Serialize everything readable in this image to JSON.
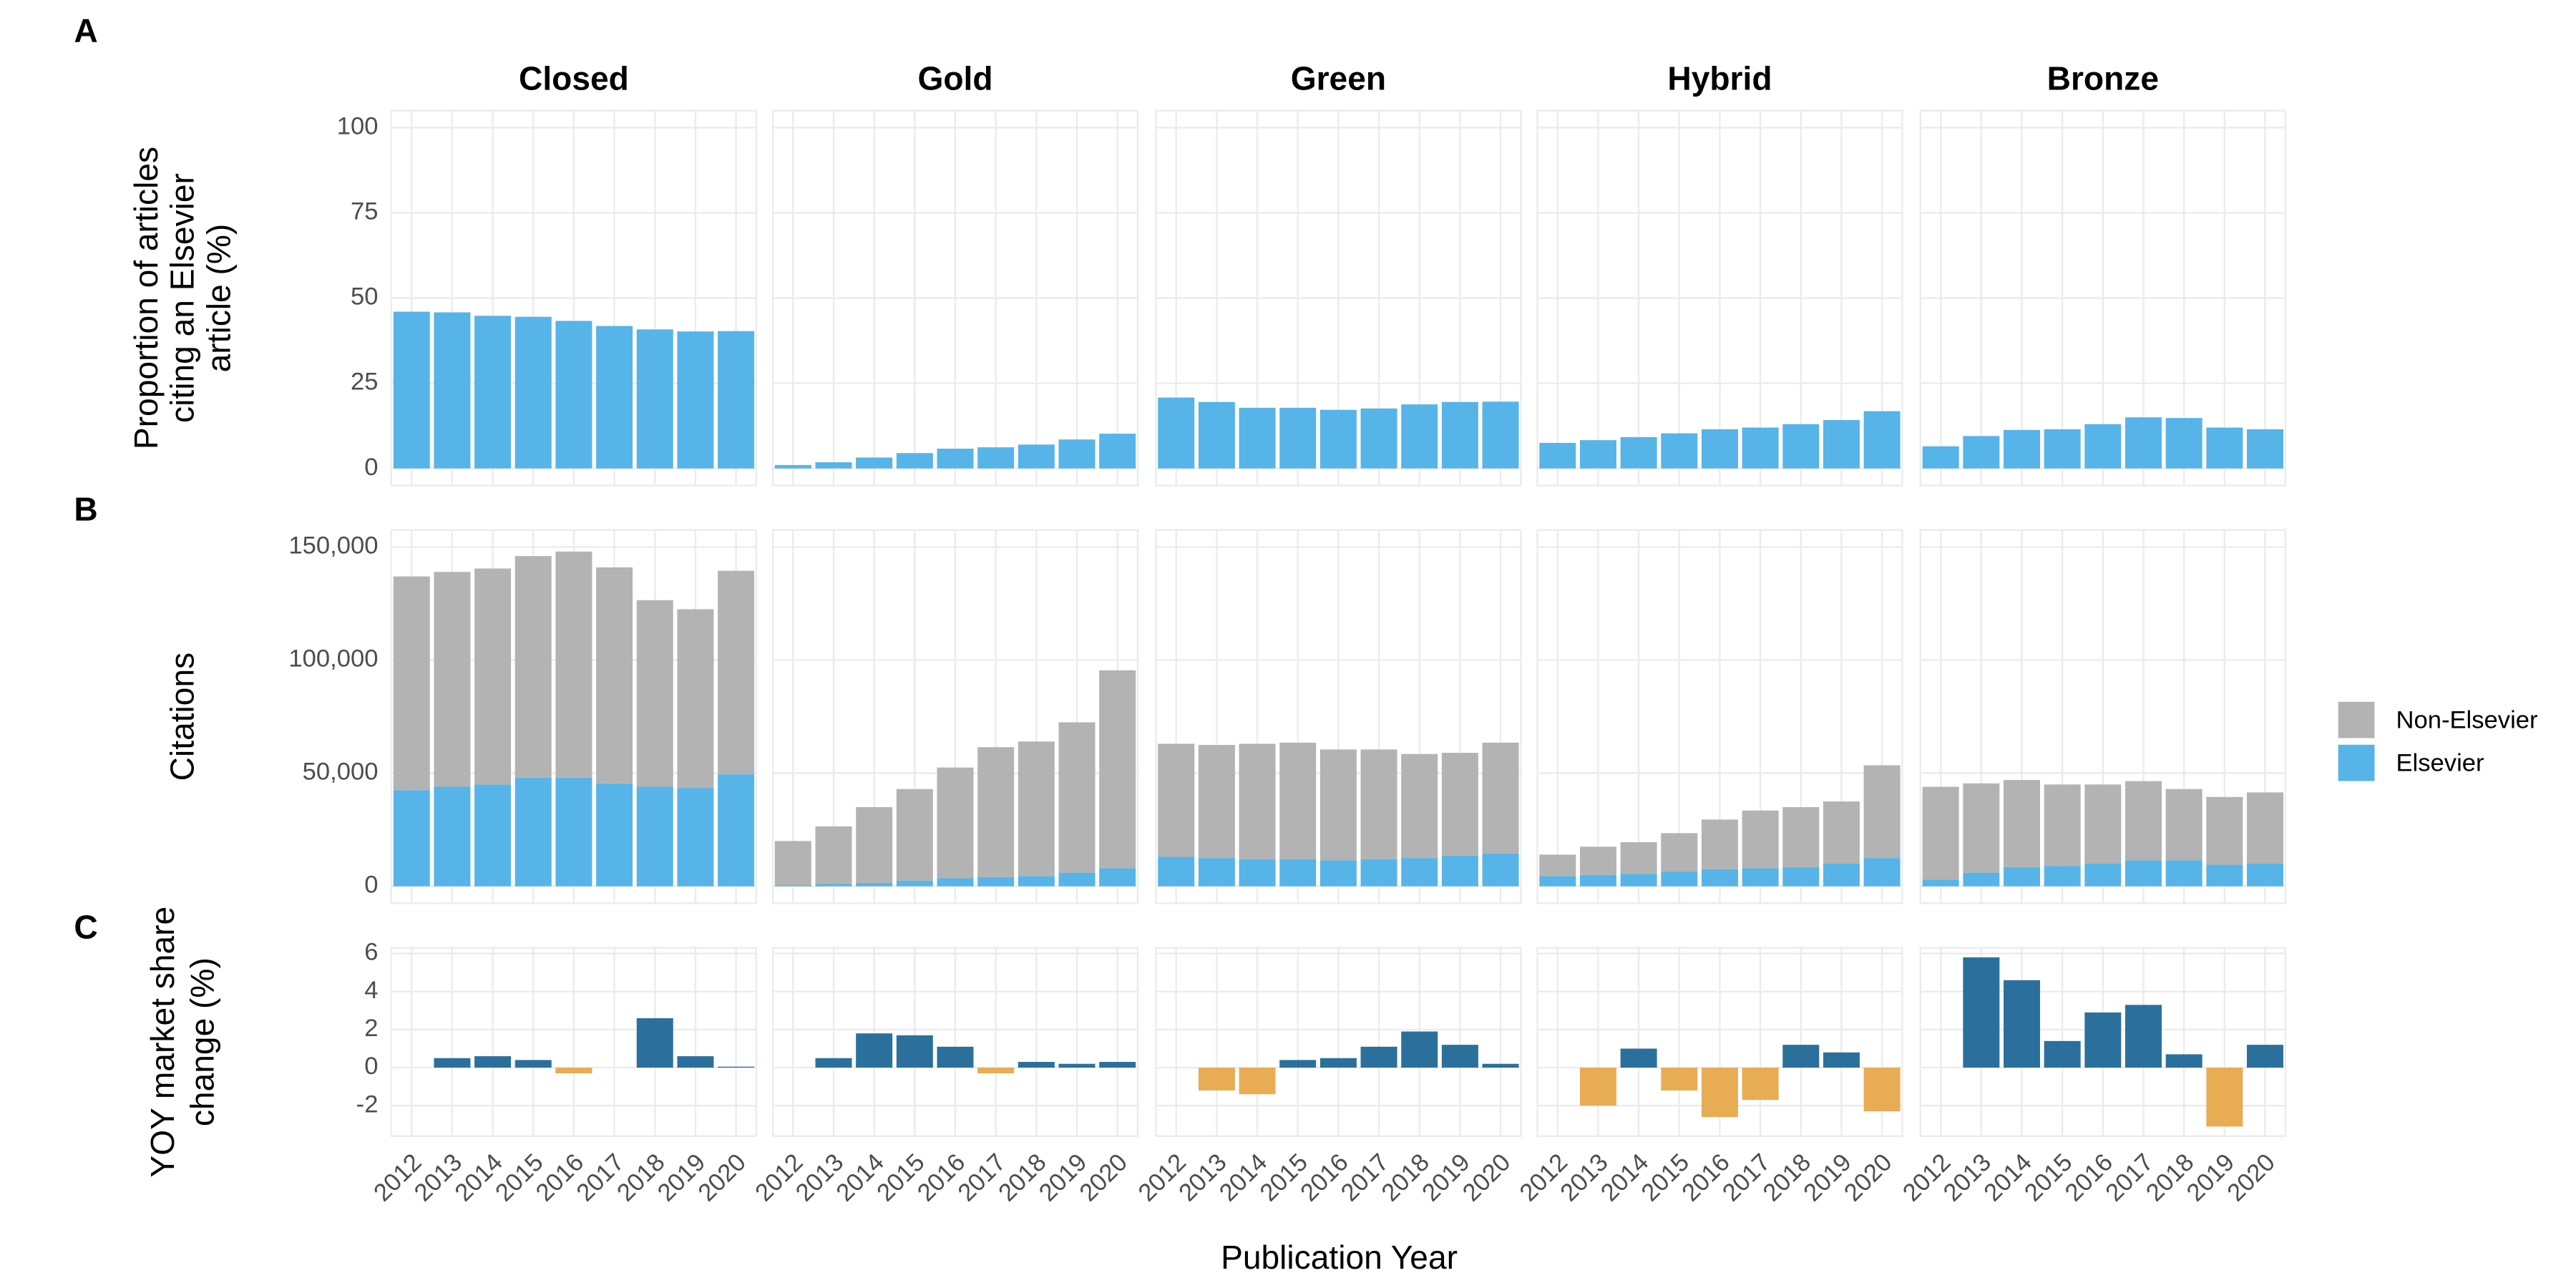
{
  "chart_data": {
    "type": "bar",
    "facets": [
      "Closed",
      "Gold",
      "Green",
      "Hybrid",
      "Bronze"
    ],
    "categories": [
      2012,
      2013,
      2014,
      2015,
      2016,
      2017,
      2018,
      2019,
      2020
    ],
    "xlabel": "Publication Year",
    "grid": true,
    "legend_position": "right",
    "panels": [
      {
        "label": "A",
        "ylabel": [
          "Proportion of articles",
          "citing an Elsevier",
          "article (%)"
        ],
        "ylim": [
          -5,
          105
        ],
        "yticks": [
          0,
          25,
          50,
          75,
          100
        ],
        "color": "#56b4e9",
        "values": [
          [
            46,
            45.8,
            44.8,
            44.5,
            43.3,
            41.8,
            40.8,
            40.2,
            40.3
          ],
          [
            1,
            1.8,
            3.2,
            4.5,
            5.8,
            6.2,
            7,
            8.5,
            10.2
          ],
          [
            20.8,
            19.5,
            17.8,
            17.8,
            17.2,
            17.6,
            18.8,
            19.5,
            19.6
          ],
          [
            7.5,
            8.3,
            9.2,
            10.3,
            11.5,
            12,
            13,
            14.2,
            16.8
          ],
          [
            6.5,
            9.5,
            11.3,
            11.5,
            13,
            15,
            14.8,
            12,
            11.5
          ]
        ]
      },
      {
        "label": "B",
        "ylabel": [
          "Citations"
        ],
        "ylim": [
          -7500,
          157500
        ],
        "yticks": [
          0,
          {
            "value": 50000,
            "label": "50,000"
          },
          {
            "value": 100000,
            "label": "100,000"
          },
          {
            "value": 150000,
            "label": "150,000"
          }
        ],
        "series": [
          {
            "name": "Non-Elsevier",
            "color": "#b3b3b3",
            "values": [
              [
                94500,
                95000,
                95500,
                98000,
                100000,
                95500,
                82500,
                79000,
                90000
              ],
              [
                19500,
                25500,
                33500,
                40500,
                49000,
                57500,
                59500,
                66500,
                87500
              ],
              [
                50000,
                50000,
                51000,
                51500,
                49000,
                48500,
                46000,
                45500,
                49000
              ],
              [
                9500,
                12500,
                14000,
                17000,
                22000,
                25500,
                26500,
                27500,
                41000
              ],
              [
                41000,
                39500,
                38500,
                36000,
                35000,
                35000,
                31500,
                30000,
                31500
              ]
            ]
          },
          {
            "name": "Elsevier",
            "color": "#56b4e9",
            "values": [
              [
                42500,
                44000,
                45000,
                48000,
                48000,
                45500,
                44000,
                43500,
                49500
              ],
              [
                500,
                1000,
                1500,
                2500,
                3500,
                4000,
                4500,
                6000,
                8000
              ],
              [
                13000,
                12500,
                12000,
                12000,
                11500,
                12000,
                12500,
                13500,
                14500
              ],
              [
                4500,
                5000,
                5500,
                6500,
                7500,
                8000,
                8500,
                10000,
                12500
              ],
              [
                3000,
                6000,
                8500,
                9000,
                10000,
                11500,
                11500,
                9500,
                10000
              ]
            ]
          }
        ]
      },
      {
        "label": "C",
        "ylabel": [
          "YOY market share",
          "change (%)"
        ],
        "ylim": [
          -3.6,
          6.3
        ],
        "yticks": [
          -2,
          0,
          2,
          4,
          6
        ],
        "positive_color": "#2b709c",
        "negative_color": "#e8ac55",
        "values": [
          [
            null,
            0.5,
            0.6,
            0.4,
            -0.3,
            0,
            2.6,
            0.6,
            0.05
          ],
          [
            null,
            0.5,
            1.8,
            1.7,
            1.1,
            -0.3,
            0.3,
            0.2,
            0.3
          ],
          [
            null,
            -1.2,
            -1.4,
            0.4,
            0.5,
            1.1,
            1.9,
            1.2,
            0.2
          ],
          [
            null,
            -2,
            1,
            -1.2,
            -2.6,
            -1.7,
            1.2,
            0.8,
            -2.3
          ],
          [
            null,
            5.8,
            4.6,
            1.4,
            2.9,
            3.3,
            0.7,
            -3.1,
            1.2
          ]
        ]
      }
    ]
  }
}
